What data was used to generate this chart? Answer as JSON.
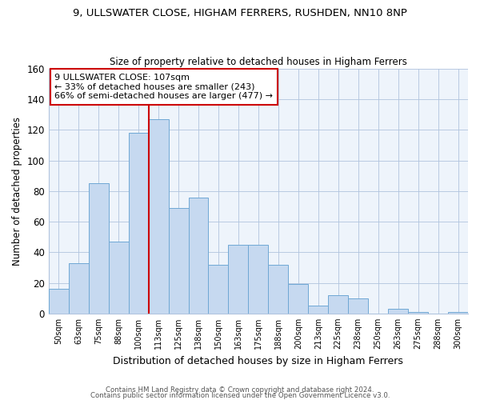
{
  "title": "9, ULLSWATER CLOSE, HIGHAM FERRERS, RUSHDEN, NN10 8NP",
  "subtitle": "Size of property relative to detached houses in Higham Ferrers",
  "xlabel": "Distribution of detached houses by size in Higham Ferrers",
  "ylabel": "Number of detached properties",
  "bar_labels": [
    "50sqm",
    "63sqm",
    "75sqm",
    "88sqm",
    "100sqm",
    "113sqm",
    "125sqm",
    "138sqm",
    "150sqm",
    "163sqm",
    "175sqm",
    "188sqm",
    "200sqm",
    "213sqm",
    "225sqm",
    "238sqm",
    "250sqm",
    "263sqm",
    "275sqm",
    "288sqm",
    "300sqm"
  ],
  "bar_heights": [
    16,
    33,
    85,
    47,
    118,
    127,
    69,
    76,
    32,
    45,
    45,
    32,
    19,
    5,
    12,
    10,
    0,
    3,
    1,
    0,
    1
  ],
  "bar_color": "#c6d9f0",
  "bar_edge_color": "#6fa8d4",
  "vline_color": "#cc0000",
  "annotation_title": "9 ULLSWATER CLOSE: 107sqm",
  "annotation_line1": "← 33% of detached houses are smaller (243)",
  "annotation_line2": "66% of semi-detached houses are larger (477) →",
  "annotation_box_color": "#ffffff",
  "annotation_box_edge": "#cc0000",
  "plot_bg_color": "#eef4fb",
  "ylim": [
    0,
    160
  ],
  "yticks": [
    0,
    20,
    40,
    60,
    80,
    100,
    120,
    140,
    160
  ],
  "footer1": "Contains HM Land Registry data © Crown copyright and database right 2024.",
  "footer2": "Contains public sector information licensed under the Open Government Licence v3.0."
}
